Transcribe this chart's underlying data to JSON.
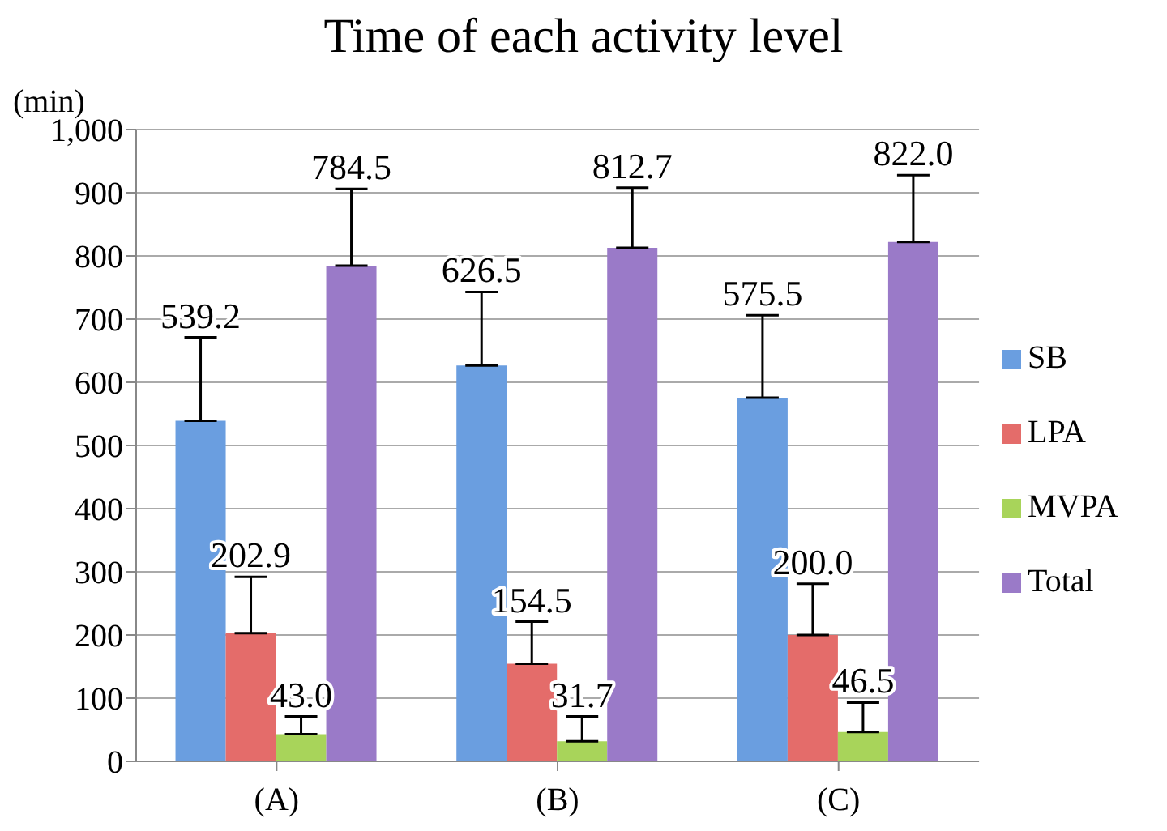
{
  "chart_data": {
    "type": "bar",
    "title": "Time of each activity level",
    "ylabel": "(min)",
    "categories": [
      "(A)",
      "(B)",
      "(C)"
    ],
    "series": [
      {
        "name": "SB",
        "color": "#6a9ee0",
        "values": [
          539.2,
          626.5,
          575.5
        ],
        "value_labels": [
          "539.2",
          "626.5",
          "575.5"
        ],
        "errors": [
          [
            539.2,
            671
          ],
          [
            626.5,
            743
          ],
          [
            575.5,
            706
          ]
        ]
      },
      {
        "name": "LPA",
        "color": "#e46c6a",
        "values": [
          202.9,
          154.5,
          200.0
        ],
        "value_labels": [
          "202.9",
          "154.5",
          "200.0"
        ],
        "errors": [
          [
            202.9,
            292
          ],
          [
            154.5,
            221
          ],
          [
            200.0,
            281
          ]
        ]
      },
      {
        "name": "MVPA",
        "color": "#a8d45a",
        "values": [
          43.0,
          31.7,
          46.5
        ],
        "value_labels": [
          "43.0",
          "31.7",
          "46.5"
        ],
        "errors": [
          [
            43.0,
            71
          ],
          [
            31.7,
            71
          ],
          [
            46.5,
            93
          ]
        ]
      },
      {
        "name": "Total",
        "color": "#9a7ac8",
        "values": [
          784.5,
          812.7,
          822.0
        ],
        "value_labels": [
          "784.5",
          "812.7",
          "822.0"
        ],
        "errors": [
          [
            784.5,
            906
          ],
          [
            812.7,
            908
          ],
          [
            822.0,
            928
          ]
        ]
      }
    ],
    "ylim": [
      0,
      1000
    ],
    "yticks": [
      0,
      100,
      200,
      300,
      400,
      500,
      600,
      700,
      800,
      900,
      {
        "value": 1000,
        "label": "1,000"
      }
    ],
    "grid": "y",
    "legend": "right"
  }
}
